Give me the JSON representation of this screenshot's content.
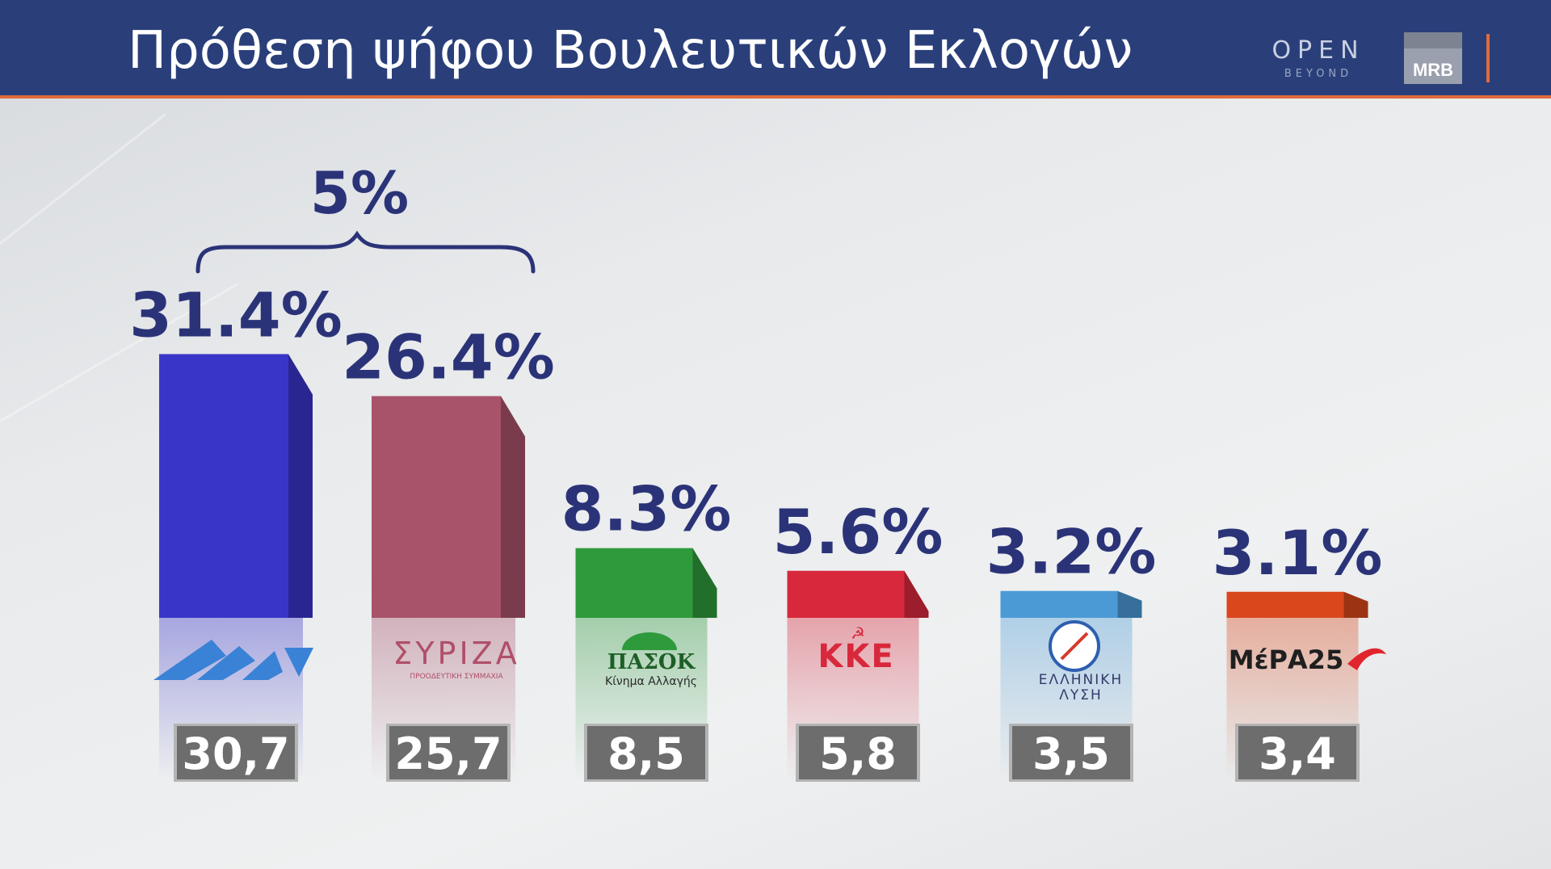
{
  "header": {
    "title": "Πρόθεση ψήφου Βουλευτικών Εκλογών",
    "open_logo": "OPEN",
    "open_sub": "BEYOND",
    "mrb_logo": "MRB"
  },
  "chart_data": {
    "type": "bar",
    "categories": [
      "ΝΔ",
      "ΣΥΡΙΖΑ",
      "ΠΑΣΟΚ",
      "ΚΚΕ",
      "ΕΛΛΗΝΙΚΗ ΛΥΣΗ",
      "ΜέΡΑ25"
    ],
    "series": [
      {
        "values": [
          31.4,
          26.4,
          8.3,
          5.6,
          3.2,
          3.1
        ]
      }
    ],
    "value_labels": [
      "31.4%",
      "26.4%",
      "8.3%",
      "5.6%",
      "3.2%",
      "3.1%"
    ],
    "previous_values": [
      30.7,
      25.7,
      8.5,
      5.8,
      3.5,
      3.4
    ],
    "previous_labels": [
      "30,7",
      "25,7",
      "8,5",
      "5,8",
      "3,5",
      "3,4"
    ],
    "gap_annotation": "5%",
    "logo_texts": {
      "syriza": "ΣΥΡΙΖΑ",
      "syriza_sub": "ΠΡΟΟΔΕΥΤΙΚΗ ΣΥΜΜΑΧΙΑ",
      "pasok": "ΠΑΣΟΚ",
      "pasok_sub": "Κίνημα Αλλαγής",
      "kke": "ΚΚΕ",
      "elliniki_1": "ΕΛΛΗΝΙΚΗ",
      "elliniki_2": "ΛΥΣΗ",
      "mera": "ΜέΡΑ25"
    },
    "colors": {
      "nd": "#3a35c9",
      "syriza": "#a9536b",
      "pasok": "#2e9a3c",
      "kke": "#d8283c",
      "elliniki": "#4b9ad6",
      "mera": "#d9481c",
      "label": "#2b3378",
      "badge": "#6d6d6d"
    }
  }
}
